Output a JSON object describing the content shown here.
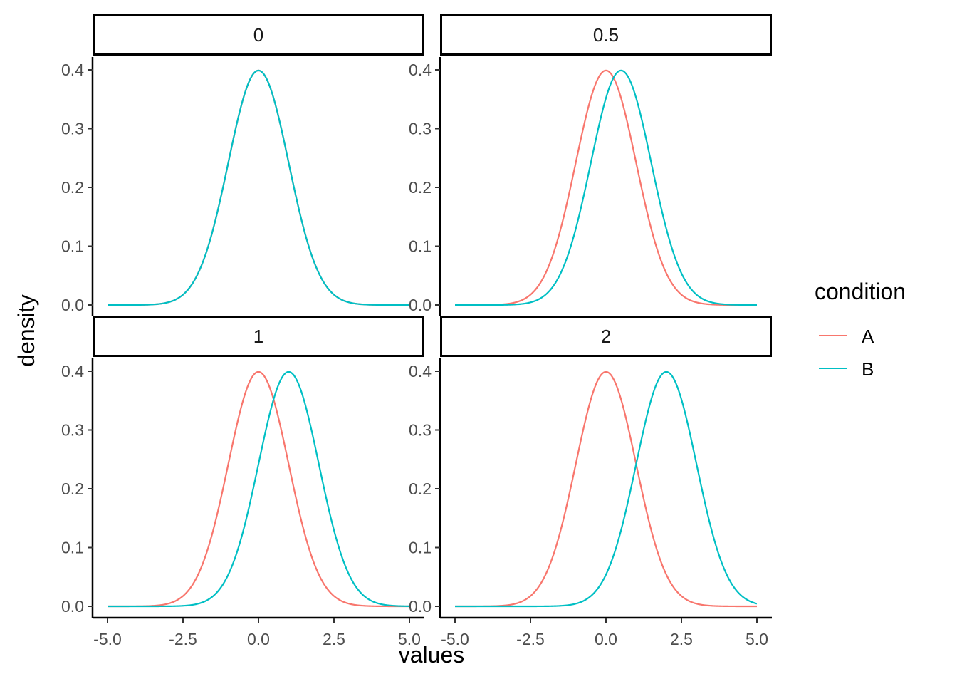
{
  "colors": {
    "A": "#F8766D",
    "B": "#00BFC4"
  },
  "chart_data": {
    "type": "line",
    "layout": "facet_wrap 2x2",
    "xlabel": "values",
    "ylabel": "density",
    "xlim": [
      -5,
      5
    ],
    "ylim": [
      0,
      0.4
    ],
    "x_ticks": [
      -5,
      -2.5,
      0,
      2.5,
      5
    ],
    "x_tick_labels": [
      "-5.0",
      "-2.5",
      "0.0",
      "2.5",
      "5.0"
    ],
    "y_ticks": [
      0,
      0.1,
      0.2,
      0.3,
      0.4
    ],
    "y_tick_labels": [
      "0.0",
      "0.1",
      "0.2",
      "0.3",
      "0.4"
    ],
    "legend": {
      "title": "condition",
      "entries": [
        "A",
        "B"
      ],
      "placement": "right"
    },
    "distribution": "normal density, sd = 1",
    "facets": [
      {
        "label": "0",
        "series": [
          {
            "name": "A",
            "mean": 0
          },
          {
            "name": "B",
            "mean": 0
          }
        ]
      },
      {
        "label": "0.5",
        "series": [
          {
            "name": "A",
            "mean": 0
          },
          {
            "name": "B",
            "mean": 0.5
          }
        ]
      },
      {
        "label": "1",
        "series": [
          {
            "name": "A",
            "mean": 0
          },
          {
            "name": "B",
            "mean": 1
          }
        ]
      },
      {
        "label": "2",
        "series": [
          {
            "name": "A",
            "mean": 0
          },
          {
            "name": "B",
            "mean": 2
          }
        ]
      }
    ]
  }
}
